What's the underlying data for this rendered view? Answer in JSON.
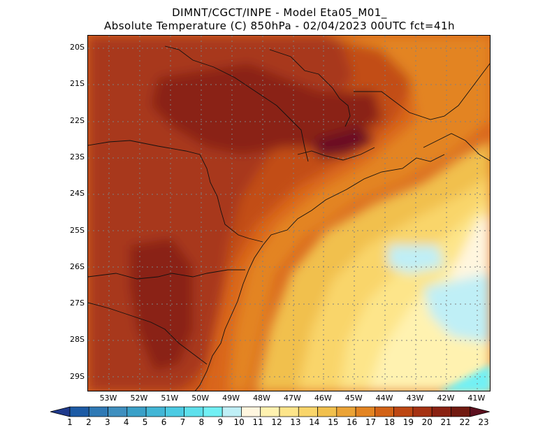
{
  "header": {
    "line1": "DIMNT/CGCT/INPE -  Model Eta05_M01_",
    "line2": "Absolute Temperature (C) 850hPa -  02/04/2023 00UTC fct=41h"
  },
  "map": {
    "lat_labels": [
      "20S",
      "21S",
      "22S",
      "23S",
      "24S",
      "25S",
      "26S",
      "27S",
      "28S",
      "29S"
    ],
    "lon_labels": [
      "53W",
      "52W",
      "51W",
      "50W",
      "49W",
      "48W",
      "47W",
      "46W",
      "45W",
      "44W",
      "43W",
      "42W",
      "41W"
    ]
  },
  "colorbar": {
    "labels": [
      "1",
      "2",
      "3",
      "4",
      "5",
      "6",
      "7",
      "8",
      "9",
      "10",
      "11",
      "12",
      "13",
      "14",
      "15",
      "16",
      "17",
      "18",
      "19",
      "20",
      "21",
      "22",
      "23"
    ],
    "colors": [
      "#1f3a8c",
      "#1d5ba5",
      "#2f79b5",
      "#3f8fbf",
      "#3aa0c8",
      "#42b6d6",
      "#4ccbe3",
      "#5ee0ec",
      "#72f0f4",
      "#bfeff6",
      "#fff6df",
      "#fff2b0",
      "#fde58a",
      "#f9d56a",
      "#f1c04d",
      "#eba336",
      "#e38422",
      "#d26216",
      "#bd4713",
      "#a53212",
      "#8a2212",
      "#711a10",
      "#5c0f1e"
    ]
  }
}
